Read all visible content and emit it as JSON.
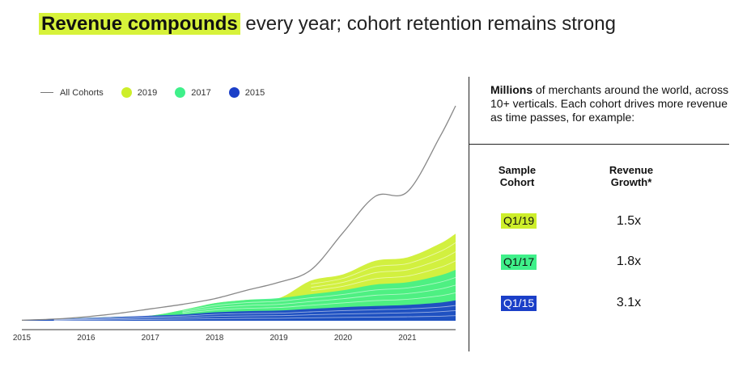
{
  "title": {
    "highlight": "Revenue compounds",
    "rest": " every year; cohort retention remains strong"
  },
  "legend": [
    {
      "label": "All Cohorts",
      "kind": "line",
      "color": "#888888"
    },
    {
      "label": "2019",
      "kind": "dot",
      "color": "#cdee2a"
    },
    {
      "label": "2017",
      "kind": "dot",
      "color": "#3ff08a"
    },
    {
      "label": "2015",
      "kind": "dot",
      "color": "#1b3fc8"
    }
  ],
  "chart_data": {
    "type": "area",
    "x_ticks": [
      "2015",
      "2016",
      "2017",
      "2018",
      "2019",
      "2020",
      "2021"
    ],
    "x": [
      2015.0,
      2015.5,
      2016.0,
      2016.5,
      2017.0,
      2017.5,
      2018.0,
      2018.5,
      2019.0,
      2019.5,
      2020.0,
      2020.5,
      2021.0,
      2021.5,
      2021.75
    ],
    "y_axis_shown": false,
    "grid": false,
    "legend_position": "top-left",
    "series": [
      {
        "name": "All Cohorts",
        "color": "#888888",
        "values": [
          0.5,
          1.5,
          3.5,
          6.5,
          10.5,
          14.5,
          19.5,
          27.0,
          34.0,
          45.0,
          78.0,
          110.0,
          114.0,
          162.0,
          190.0
        ]
      },
      {
        "name": "2019",
        "color": "#cdee2a",
        "values": [
          0,
          0,
          0,
          0,
          0,
          0,
          0,
          0,
          0,
          12.0,
          14.0,
          21.0,
          22.0,
          28.0,
          32.0
        ]
      },
      {
        "name": "2017",
        "color": "#3ff08a",
        "values": [
          0,
          0,
          0,
          0,
          0,
          4.0,
          8.0,
          10.0,
          11.0,
          13.0,
          15.0,
          19.0,
          20.0,
          24.0,
          27.0
        ]
      },
      {
        "name": "2015",
        "color": "#1b3fc8",
        "values": [
          0.5,
          1.5,
          2.5,
          3.5,
          4.5,
          5.5,
          7.5,
          8.5,
          9.0,
          10.5,
          12.0,
          13.0,
          14.0,
          16.0,
          18.0
        ]
      }
    ]
  },
  "panel": {
    "intro_bold": "Millions",
    "intro_rest": " of merchants around the world, across 10+ verticals. Each cohort drives more revenue as time passes, for example:",
    "header_cohort_line1": "Sample",
    "header_cohort_line2": "Cohort",
    "header_growth_line1": "Revenue",
    "header_growth_line2": "Growth*",
    "rows": [
      {
        "cohort": "Q1/19",
        "growth": "1.5x",
        "bg": "#cdee2a",
        "fg": "#111111"
      },
      {
        "cohort": "Q1/17",
        "growth": "1.8x",
        "bg": "#3ff08a",
        "fg": "#111111"
      },
      {
        "cohort": "Q1/15",
        "growth": "3.1x",
        "bg": "#1b3fc8",
        "fg": "#ffffff"
      }
    ]
  }
}
